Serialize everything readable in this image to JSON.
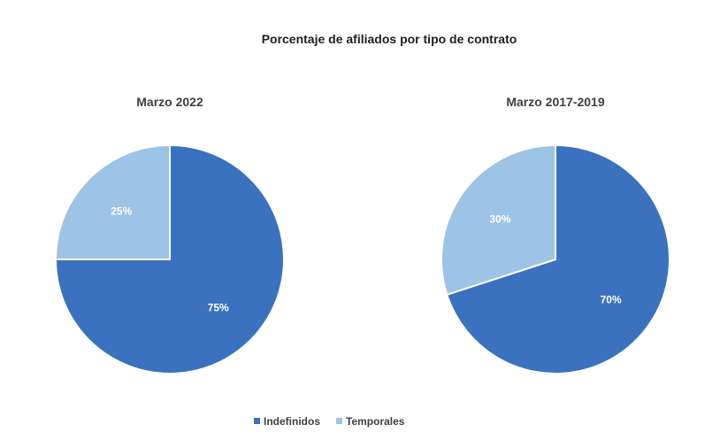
{
  "chart_data": {
    "type": "pie",
    "title": "Porcentaje de afiliados por tipo de contrato",
    "legend": {
      "placement": "bottom",
      "entries": [
        {
          "name": "Indefinidos",
          "color": "#3a72c0"
        },
        {
          "name": "Temporales",
          "color": "#9dc3e6"
        }
      ]
    },
    "charts": [
      {
        "subtitle": "Marzo 2022",
        "slices": [
          {
            "name": "Indefinidos",
            "value": 75,
            "label": "75%",
            "color": "#3a72c0"
          },
          {
            "name": "Temporales",
            "value": 25,
            "label": "25%",
            "color": "#9dc3e6"
          }
        ]
      },
      {
        "subtitle": "Marzo 2017-2019",
        "slices": [
          {
            "name": "Indefinidos",
            "value": 70,
            "label": "70%",
            "color": "#3a72c0"
          },
          {
            "name": "Temporales",
            "value": 30,
            "label": "30%",
            "color": "#9dc3e6"
          }
        ]
      }
    ]
  }
}
